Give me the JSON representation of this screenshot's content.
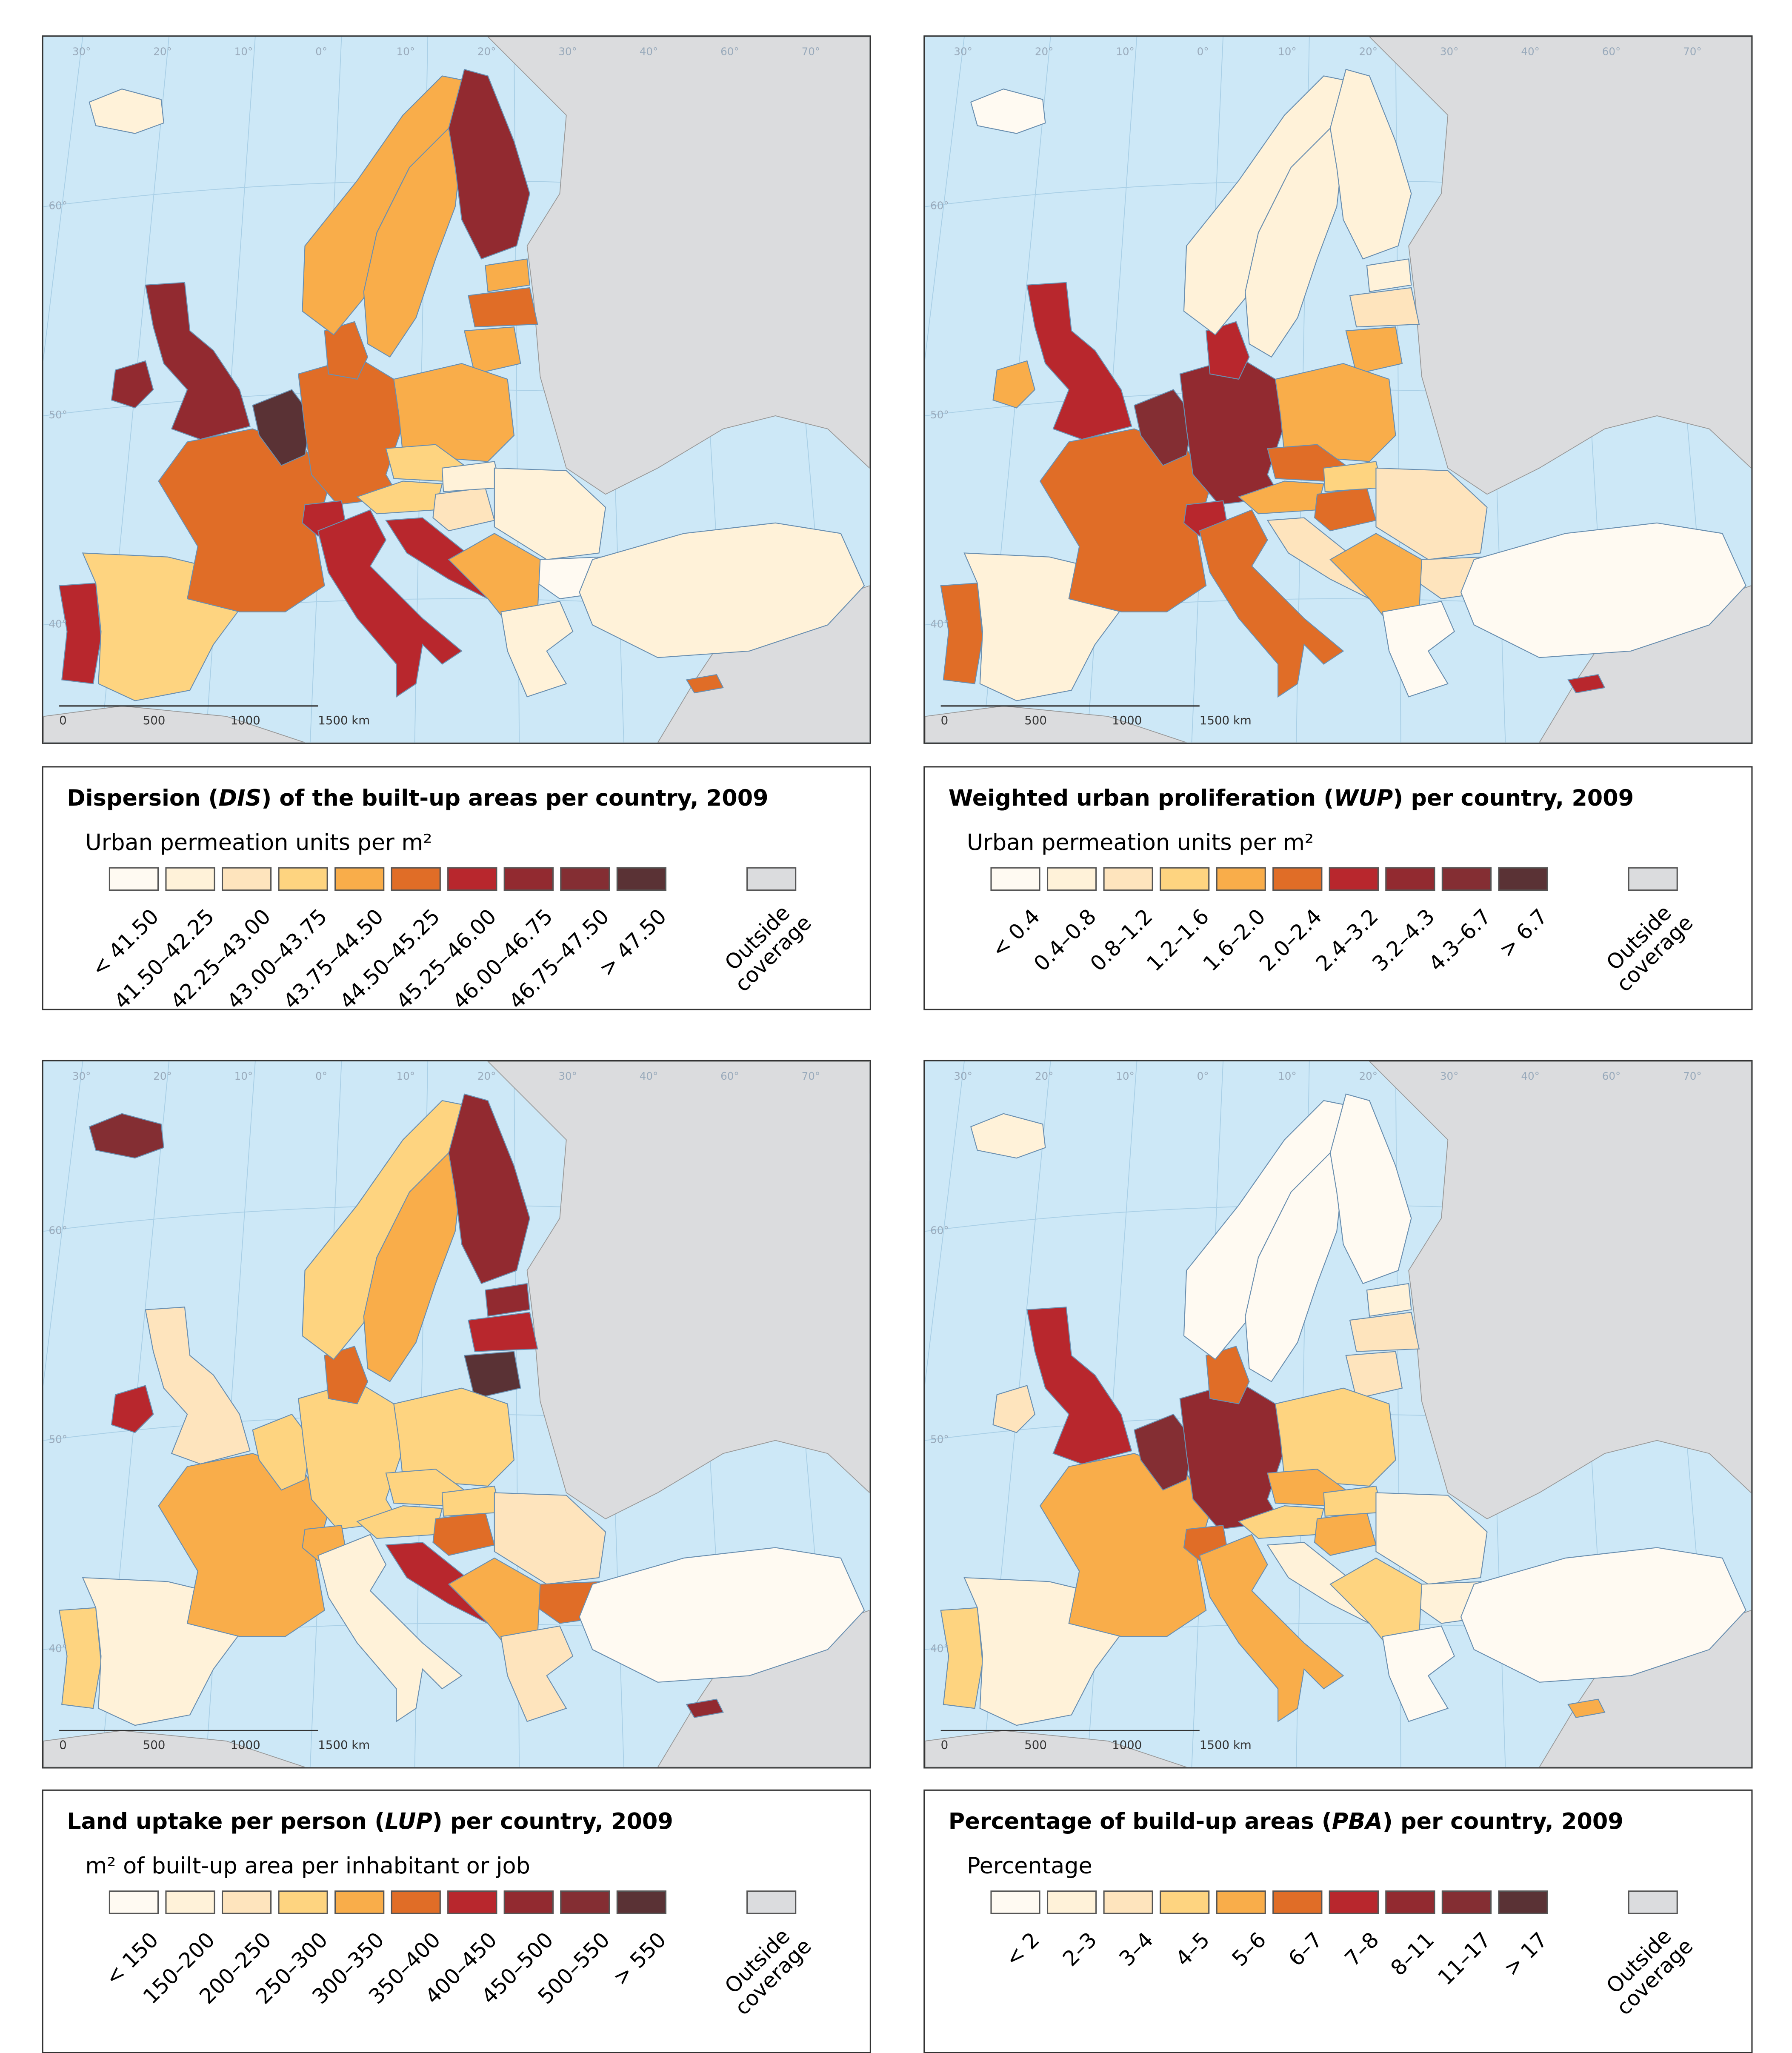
{
  "palette": [
    "#FFFAF2",
    "#FFF2D9",
    "#FEE4BD",
    "#FED480",
    "#F9AD4A",
    "#E06D27",
    "#B8272D",
    "#922A30",
    "#842E33",
    "#5A3235"
  ],
  "outside_color": "#DBDCDE",
  "ocean_color": "#CDE8F7",
  "graticule": {
    "lon": [
      "30°",
      "20°",
      "10°",
      "0°",
      "10°",
      "20°",
      "30°",
      "40°",
      "60°",
      "70°"
    ],
    "lat": [
      "60°",
      "50°",
      "40°"
    ]
  },
  "scale_bar": {
    "labels": [
      "0",
      "500",
      "1000",
      "1500 km"
    ]
  },
  "outside_label_1": "Outside",
  "outside_label_2": "coverage",
  "maps": [
    {
      "id": "dis",
      "title_pre": "Dispersion (",
      "title_abbr": "DIS",
      "title_post": ") of the built-up areas per country, 2009",
      "subtitle": "Urban permeation units per m²",
      "classes": [
        "< 41.50",
        "41.50–42.25",
        "42.25–43.00",
        "43.00–43.75",
        "43.75–44.50",
        "44.50–45.25",
        "45.25–46.00",
        "46.00–46.75",
        "46.75–47.50",
        "> 47.50"
      ],
      "countries": {
        "Iceland": 1,
        "Ireland": 7,
        "UK": 7,
        "Portugal": 6,
        "Spain": 3,
        "France": 5,
        "Benelux": 9,
        "Germany": 5,
        "Denmark": 5,
        "Norway": 4,
        "Sweden": 4,
        "Finland": 7,
        "Estonia": 4,
        "Latvia": 5,
        "Lithuania": 4,
        "Poland": 4,
        "Czechia": 3,
        "Austria": 3,
        "Switzerland": 6,
        "Italy": 6,
        "Slovenia-Croatia": 6,
        "Hungary": 2,
        "Slovakia": 1,
        "Romania": 1,
        "Bulgaria": 0,
        "Balkans": 4,
        "Greece": 1,
        "Turkey": 1,
        "Cyprus": 5
      }
    },
    {
      "id": "wup",
      "title_pre": "Weighted urban proliferation (",
      "title_abbr": "WUP",
      "title_post": ") per country, 2009",
      "subtitle": "Urban permeation units per m²",
      "classes": [
        "< 0.4",
        "0.4–0.8",
        "0.8–1.2",
        "1.2–1.6",
        "1.6–2.0",
        "2.0–2.4",
        "2.4–3.2",
        "3.2–4.3",
        "4.3–6.7",
        "> 6.7"
      ],
      "countries": {
        "Iceland": 0,
        "Ireland": 4,
        "UK": 6,
        "Portugal": 5,
        "Spain": 1,
        "France": 5,
        "Benelux": 8,
        "Germany": 7,
        "Denmark": 6,
        "Norway": 1,
        "Sweden": 1,
        "Finland": 1,
        "Estonia": 1,
        "Latvia": 2,
        "Lithuania": 4,
        "Poland": 4,
        "Czechia": 5,
        "Austria": 4,
        "Switzerland": 6,
        "Italy": 5,
        "Slovenia-Croatia": 2,
        "Hungary": 5,
        "Slovakia": 3,
        "Romania": 2,
        "Bulgaria": 2,
        "Balkans": 4,
        "Greece": 0,
        "Turkey": 0,
        "Cyprus": 6
      }
    },
    {
      "id": "lup",
      "title_pre": "Land uptake per person (",
      "title_abbr": "LUP",
      "title_post": ") per country, 2009",
      "subtitle": "m² of built-up area per inhabitant or job",
      "classes": [
        "< 150",
        "150–200",
        "200–250",
        "250–300",
        "300–350",
        "350–400",
        "400–450",
        "450–500",
        "500–550",
        "> 550"
      ],
      "countries": {
        "Iceland": 8,
        "Ireland": 6,
        "UK": 2,
        "Portugal": 3,
        "Spain": 1,
        "France": 4,
        "Benelux": 3,
        "Germany": 3,
        "Denmark": 5,
        "Norway": 3,
        "Sweden": 4,
        "Finland": 7,
        "Estonia": 7,
        "Latvia": 6,
        "Lithuania": 9,
        "Poland": 3,
        "Czechia": 3,
        "Austria": 3,
        "Switzerland": 4,
        "Italy": 1,
        "Slovenia-Croatia": 6,
        "Hungary": 5,
        "Slovakia": 3,
        "Romania": 2,
        "Bulgaria": 5,
        "Balkans": 4,
        "Greece": 2,
        "Turkey": 0,
        "Cyprus": 7
      }
    },
    {
      "id": "pba",
      "title_pre": "Percentage of build-up areas (",
      "title_abbr": "PBA",
      "title_post": ") per country, 2009",
      "subtitle": "Percentage",
      "classes": [
        "< 2",
        "2–3",
        "3–4",
        "4–5",
        "5–6",
        "6–7",
        "7–8",
        "8–11",
        "11–17",
        "> 17"
      ],
      "countries": {
        "Iceland": 1,
        "Ireland": 2,
        "UK": 6,
        "Portugal": 3,
        "Spain": 1,
        "France": 4,
        "Benelux": 8,
        "Germany": 7,
        "Denmark": 5,
        "Norway": 0,
        "Sweden": 0,
        "Finland": 0,
        "Estonia": 1,
        "Latvia": 2,
        "Lithuania": 2,
        "Poland": 3,
        "Czechia": 4,
        "Austria": 3,
        "Switzerland": 5,
        "Italy": 4,
        "Slovenia-Croatia": 1,
        "Hungary": 4,
        "Slovakia": 3,
        "Romania": 1,
        "Bulgaria": 1,
        "Balkans": 3,
        "Greece": 0,
        "Turkey": 0,
        "Cyprus": 4
      }
    }
  ]
}
